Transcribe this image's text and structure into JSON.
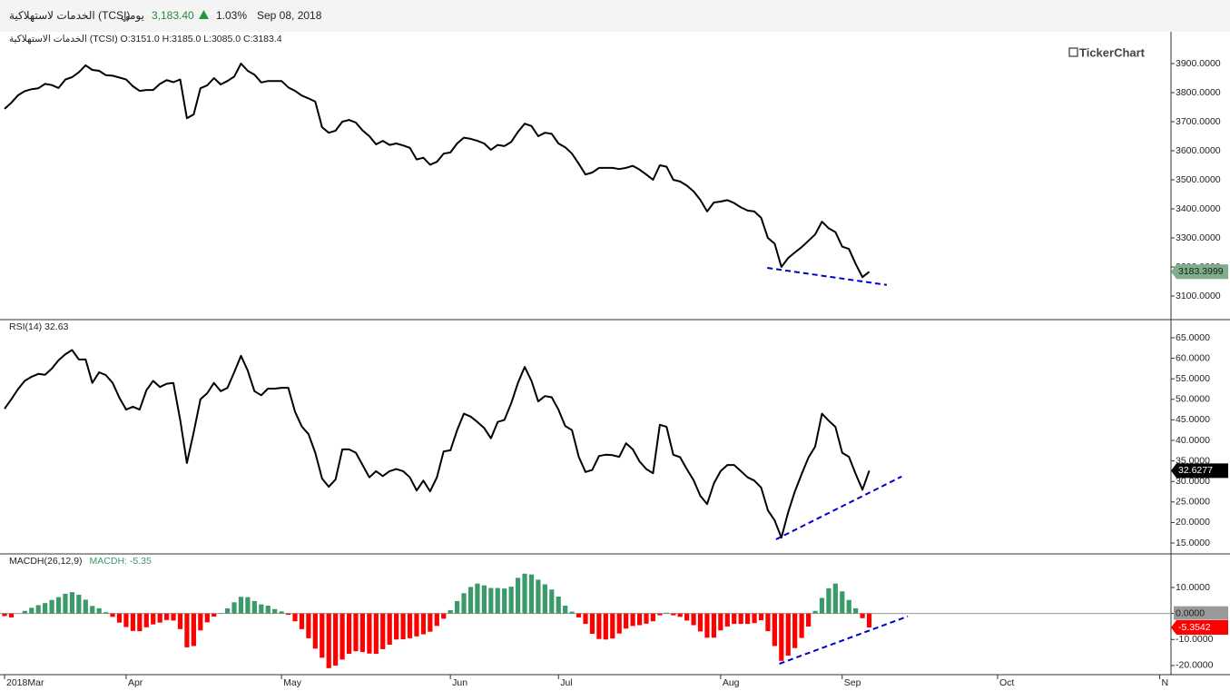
{
  "header": {
    "name": "الخدمات لاستهلاكية (TCSI)",
    "period": "يومي",
    "price": "3,183.40",
    "change": "1.03%",
    "date": "Sep 08, 2018"
  },
  "chart_data": [
    {
      "type": "line",
      "title": "الخدمات الاستهلاكية (TCSI) O:3151.0 H:3185.0 L:3085.0 C:3183.4",
      "watermark": "TickerChart",
      "x": [
        0,
        1,
        2,
        3,
        4,
        5,
        6,
        7,
        8,
        9,
        10,
        11,
        12,
        13,
        14,
        15,
        16,
        17,
        18,
        19,
        20,
        21,
        22,
        23,
        24,
        25,
        26,
        27,
        28,
        29,
        30,
        31,
        32,
        33,
        34,
        35,
        36,
        37,
        38,
        39,
        40,
        41,
        42,
        43,
        44,
        45,
        46,
        47,
        48,
        49,
        50,
        51,
        52,
        53,
        54,
        55,
        56,
        57,
        58,
        59,
        60,
        61,
        62,
        63,
        64,
        65,
        66,
        67,
        68,
        69,
        70,
        71,
        72,
        73,
        74,
        75,
        76,
        77,
        78,
        79,
        80,
        81,
        82,
        83,
        84,
        85,
        86,
        87,
        88,
        89,
        90,
        91,
        92,
        93,
        94,
        95,
        96,
        97,
        98,
        99,
        100,
        101,
        102,
        103,
        104,
        105,
        106,
        107,
        108,
        109,
        110,
        111,
        112,
        113,
        114,
        115,
        116,
        117,
        118,
        119,
        120,
        121,
        122,
        123,
        124,
        125,
        126,
        127,
        128
      ],
      "series": [
        {
          "color": "#000000",
          "values": [
            3744,
            3765,
            3791,
            3805,
            3812,
            3815,
            3830,
            3826,
            3816,
            3845,
            3853,
            3870,
            3894,
            3878,
            3875,
            3860,
            3858,
            3852,
            3845,
            3822,
            3806,
            3809,
            3809,
            3830,
            3843,
            3836,
            3845,
            3712,
            3725,
            3815,
            3825,
            3850,
            3828,
            3840,
            3855,
            3900,
            3875,
            3862,
            3835,
            3840,
            3840,
            3840,
            3818,
            3806,
            3790,
            3780,
            3769,
            3681,
            3662,
            3669,
            3700,
            3706,
            3697,
            3670,
            3650,
            3622,
            3634,
            3620,
            3625,
            3618,
            3610,
            3570,
            3576,
            3552,
            3562,
            3590,
            3594,
            3625,
            3645,
            3641,
            3634,
            3625,
            3603,
            3620,
            3616,
            3630,
            3665,
            3693,
            3685,
            3650,
            3662,
            3658,
            3625,
            3612,
            3590,
            3555,
            3518,
            3525,
            3541,
            3541,
            3541,
            3537,
            3541,
            3548,
            3535,
            3518,
            3500,
            3550,
            3545,
            3500,
            3494,
            3480,
            3460,
            3431,
            3391,
            3422,
            3425,
            3430,
            3420,
            3405,
            3394,
            3391,
            3369,
            3300,
            3280,
            3200,
            3231,
            3250,
            3268,
            3290,
            3312,
            3356,
            3333,
            3320,
            3270,
            3262,
            3210,
            3165,
            3183.3999
          ]
        }
      ],
      "last_value_label": "3183.3999",
      "badge_color": "#7fae8b",
      "badge_text_color": "#1a1a1a",
      "trendlines": [
        {
          "color": "#0000cc",
          "x": [
            112.9,
            130.6
          ],
          "values": [
            3197,
            3138
          ]
        }
      ],
      "xlim": [
        0,
        172
      ],
      "ylim": [
        3018.75,
        4009.375
      ],
      "yticks": [
        {
          "value": 3100,
          "label": "3100.0000"
        },
        {
          "value": 3200,
          "label": "3200.0000"
        },
        {
          "value": 3300,
          "label": "3300.0000"
        },
        {
          "value": 3400,
          "label": "3400.0000"
        },
        {
          "value": 3500,
          "label": "3500.0000"
        },
        {
          "value": 3600,
          "label": "3600.0000"
        },
        {
          "value": 3700,
          "label": "3700.0000"
        },
        {
          "value": 3800,
          "label": "3800.0000"
        },
        {
          "value": 3900,
          "label": "3900.0000"
        }
      ]
    },
    {
      "type": "line",
      "title": "RSI(14)  32.63",
      "x": [
        0,
        1,
        2,
        3,
        4,
        5,
        6,
        7,
        8,
        9,
        10,
        11,
        12,
        13,
        14,
        15,
        16,
        17,
        18,
        19,
        20,
        21,
        22,
        23,
        24,
        25,
        26,
        27,
        28,
        29,
        30,
        31,
        32,
        33,
        34,
        35,
        36,
        37,
        38,
        39,
        40,
        41,
        42,
        43,
        44,
        45,
        46,
        47,
        48,
        49,
        50,
        51,
        52,
        53,
        54,
        55,
        56,
        57,
        58,
        59,
        60,
        61,
        62,
        63,
        64,
        65,
        66,
        67,
        68,
        69,
        70,
        71,
        72,
        73,
        74,
        75,
        76,
        77,
        78,
        79,
        80,
        81,
        82,
        83,
        84,
        85,
        86,
        87,
        88,
        89,
        90,
        91,
        92,
        93,
        94,
        95,
        96,
        97,
        98,
        99,
        100,
        101,
        102,
        103,
        104,
        105,
        106,
        107,
        108,
        109,
        110,
        111,
        112,
        113,
        114,
        115,
        116,
        117,
        118,
        119,
        120,
        121,
        122,
        123,
        124,
        125,
        126,
        127,
        128
      ],
      "series": [
        {
          "color": "#000000",
          "values": [
            47.7,
            50,
            52.5,
            54.5,
            55.5,
            56.2,
            56,
            57.5,
            59.5,
            61,
            62,
            59.7,
            59.7,
            54,
            56.6,
            55.9,
            54,
            50.4,
            47.5,
            48.2,
            47.5,
            52.2,
            54.5,
            53,
            53.8,
            54,
            45,
            34.5,
            42,
            50,
            51.5,
            54,
            52,
            52.8,
            56.6,
            60.6,
            57,
            52,
            51,
            52.6,
            52.6,
            52.8,
            52.8,
            47,
            43.4,
            41.5,
            37,
            30.7,
            28.7,
            30.5,
            37.8,
            37.8,
            37,
            34,
            31,
            32.5,
            31.3,
            32.5,
            33,
            32.5,
            31,
            27.8,
            30.2,
            27.6,
            31,
            37.3,
            37.6,
            42.5,
            46.5,
            45.8,
            44.5,
            43,
            40.5,
            44.5,
            45,
            49,
            54,
            57.9,
            54.5,
            49.5,
            50.8,
            50.5,
            47.5,
            43.5,
            42.5,
            36,
            32.3,
            32.8,
            36.2,
            36.5,
            36.4,
            36,
            39.3,
            37.8,
            34.9,
            33,
            32,
            43.8,
            43.3,
            36.5,
            35.9,
            33,
            30.3,
            26.5,
            24.5,
            29.5,
            32.5,
            34,
            34,
            32.5,
            31,
            30.2,
            28.5,
            23,
            20.5,
            16.3,
            22.5,
            27.6,
            31.8,
            35.8,
            38.5,
            46.5,
            44.8,
            43.3,
            37,
            36,
            31.8,
            28,
            32.6277
          ]
        }
      ],
      "last_value_label": "32.6277",
      "badge_color": "#000000",
      "badge_text_color": "#ffffff",
      "trendlines": [
        {
          "color": "#0000cc",
          "x": [
            114.2,
            132.8
          ],
          "values": [
            15.9,
            31.2
          ]
        }
      ],
      "xlim": [
        0,
        172
      ],
      "ylim": [
        12.35,
        69.42
      ],
      "yticks": [
        {
          "value": 15,
          "label": "15.0000"
        },
        {
          "value": 20,
          "label": "20.0000"
        },
        {
          "value": 25,
          "label": "25.0000"
        },
        {
          "value": 30,
          "label": "30.0000"
        },
        {
          "value": 35,
          "label": "35.0000"
        },
        {
          "value": 40,
          "label": "40.0000"
        },
        {
          "value": 45,
          "label": "45.0000"
        },
        {
          "value": 50,
          "label": "50.0000"
        },
        {
          "value": 55,
          "label": "55.0000"
        },
        {
          "value": 60,
          "label": "60.0000"
        },
        {
          "value": 65,
          "label": "65.0000"
        }
      ]
    },
    {
      "type": "bar",
      "title": "MACDH(26,12,9)",
      "subtitle": "MACDH: -5.35",
      "x": [
        0,
        1,
        2,
        3,
        4,
        5,
        6,
        7,
        8,
        9,
        10,
        11,
        12,
        13,
        14,
        15,
        16,
        17,
        18,
        19,
        20,
        21,
        22,
        23,
        24,
        25,
        26,
        27,
        28,
        29,
        30,
        31,
        32,
        33,
        34,
        35,
        36,
        37,
        38,
        39,
        40,
        41,
        42,
        43,
        44,
        45,
        46,
        47,
        48,
        49,
        50,
        51,
        52,
        53,
        54,
        55,
        56,
        57,
        58,
        59,
        60,
        61,
        62,
        63,
        64,
        65,
        66,
        67,
        68,
        69,
        70,
        71,
        72,
        73,
        74,
        75,
        76,
        77,
        78,
        79,
        80,
        81,
        82,
        83,
        84,
        85,
        86,
        87,
        88,
        89,
        90,
        91,
        92,
        93,
        94,
        95,
        96,
        97,
        98,
        99,
        100,
        101,
        102,
        103,
        104,
        105,
        106,
        107,
        108,
        109,
        110,
        111,
        112,
        113,
        114,
        115,
        116,
        117,
        118,
        119,
        120,
        121,
        122,
        123,
        124,
        125,
        126,
        127,
        128
      ],
      "series": [
        {
          "color": "#3a9a6a",
          "negative_color": "#ff0000",
          "values": [
            -1,
            -1.5,
            0,
            1,
            2.2,
            3.2,
            4,
            5.2,
            6.3,
            7.6,
            8.2,
            7.2,
            5.3,
            2.9,
            2,
            0.5,
            -1.3,
            -3.5,
            -5.2,
            -6.7,
            -6.8,
            -5.3,
            -4.2,
            -3.5,
            -2.5,
            -2.7,
            -6,
            -13,
            -12.5,
            -6.5,
            -3.4,
            -1.2,
            0.2,
            2,
            4.3,
            6.4,
            6.3,
            4.8,
            3.5,
            3,
            1.7,
            0.8,
            -0.5,
            -3,
            -6,
            -9.5,
            -13.5,
            -17,
            -21,
            -20,
            -17.7,
            -15.5,
            -14.5,
            -14.8,
            -15.4,
            -15.5,
            -13.7,
            -12,
            -10,
            -9.9,
            -9.5,
            -8.8,
            -8,
            -7,
            -4.8,
            -2,
            1.3,
            4.8,
            7.8,
            10.2,
            11.5,
            10.8,
            9.8,
            9.8,
            9.6,
            10.3,
            13.7,
            15.3,
            15,
            13,
            11.2,
            9.2,
            6.5,
            3,
            0.7,
            -1.5,
            -4,
            -7.8,
            -9.8,
            -10,
            -9.6,
            -7.7,
            -5.8,
            -4.8,
            -4.5,
            -3.9,
            -3,
            -0.7,
            0.3,
            -0.7,
            -1.3,
            -2.7,
            -4.5,
            -6.9,
            -9.3,
            -9.3,
            -6.5,
            -5,
            -4,
            -4,
            -4,
            -3.7,
            -2.6,
            -6.8,
            -12.5,
            -18.2,
            -16.2,
            -13.3,
            -9.4,
            -5,
            1,
            6,
            9.7,
            11.5,
            8.5,
            5.2,
            2,
            -1.8,
            -5.3542
          ]
        }
      ],
      "last_value_label": "-5.3542",
      "badge_color": "#ff0000",
      "badge_text_color": "#ffffff",
      "trendlines": [
        {
          "color": "#0000cc",
          "x": [
            114.7,
            133.7
          ],
          "values": [
            -19.3,
            -1.1
          ]
        }
      ],
      "xlim": [
        0,
        172
      ],
      "ylim": [
        -23.5,
        22.9
      ],
      "yticks": [
        {
          "value": -20,
          "label": "-20.0000"
        },
        {
          "value": -10,
          "label": "-10.0000"
        },
        {
          "value": 0,
          "label": "0.0000"
        },
        {
          "value": 10,
          "label": "10.0000"
        }
      ],
      "xticks": [
        {
          "value": 0,
          "label": "2018Mar"
        },
        {
          "value": 18,
          "label": "Apr"
        },
        {
          "value": 41,
          "label": "May"
        },
        {
          "value": 66,
          "label": "Jun"
        },
        {
          "value": 82,
          "label": "Jul"
        },
        {
          "value": 106,
          "label": "Aug"
        },
        {
          "value": 124,
          "label": "Sep"
        },
        {
          "value": 147,
          "label": "Oct"
        },
        {
          "value": 171,
          "label": "N"
        }
      ]
    }
  ]
}
